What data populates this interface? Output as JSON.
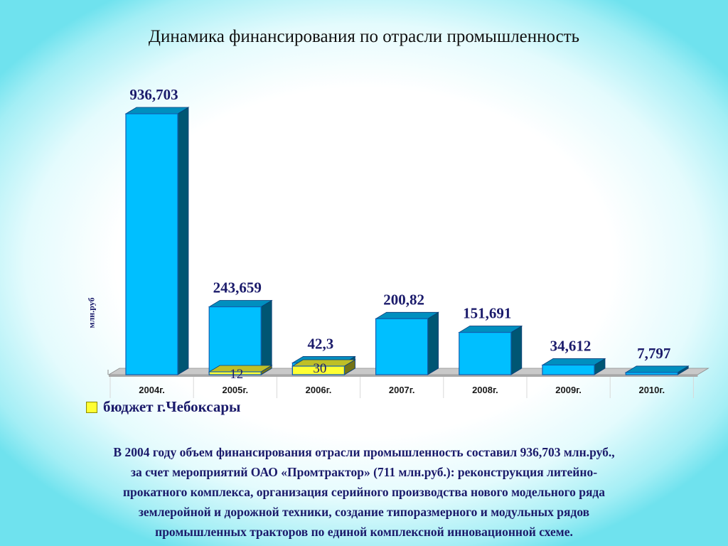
{
  "title": "Динамика финансирования по отрасли промышленность",
  "chart_data": {
    "type": "bar",
    "title": "Динамика финансирования по отрасли промышленность",
    "ylabel": "млн.руб",
    "xlabel": "",
    "ylim": [
      0,
      1000
    ],
    "categories": [
      "2004г.",
      "2005г.",
      "2006г.",
      "2007г.",
      "2008г.",
      "2009г.",
      "2010г."
    ],
    "series": [
      {
        "values": [
          936.703,
          243.659,
          42.3,
          200.82,
          151.691,
          34.612,
          7.797
        ],
        "labels": [
          "936,703",
          "243,659",
          "42,3",
          "200,82",
          "151,691",
          "34,612",
          "7,797"
        ],
        "color": "#00bfff"
      },
      {
        "name": "бюджет г.Чебоксары",
        "values": [
          null,
          12,
          30,
          null,
          null,
          null,
          null
        ],
        "labels": [
          "",
          "12",
          "30",
          "",
          "",
          "",
          ""
        ],
        "color": "#ffff33"
      }
    ],
    "legend": "bottom-left",
    "grid": false
  },
  "legend": {
    "label": "бюджет г.Чебоксары"
  },
  "caption": [
    "В 2004 году объем финансирования отрасли промышленность составил 936,703  млн.руб.,",
    "за счет мероприятий ОАО «Промтрактор» (711 млн.руб.): реконструкция литейно-",
    "прокатного комплекса, организация  серийного производства нового модельного ряда",
    "землеройной и дорожной техники, создание типоразмерного и модульных рядов",
    "промышленных тракторов по единой комплексной инновационной схеме."
  ]
}
